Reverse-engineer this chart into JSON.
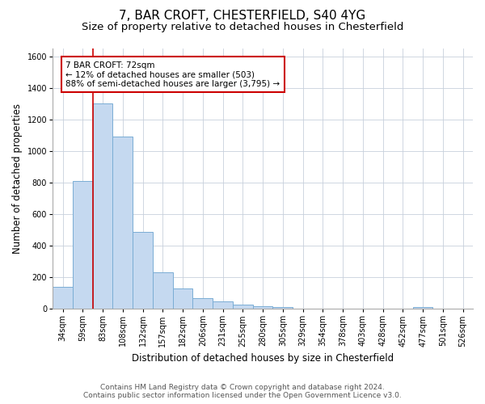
{
  "title": "7, BAR CROFT, CHESTERFIELD, S40 4YG",
  "subtitle": "Size of property relative to detached houses in Chesterfield",
  "xlabel": "Distribution of detached houses by size in Chesterfield",
  "ylabel": "Number of detached properties",
  "bar_color": "#c5d9f0",
  "bar_edge_color": "#7aadd4",
  "categories": [
    "34sqm",
    "59sqm",
    "83sqm",
    "108sqm",
    "132sqm",
    "157sqm",
    "182sqm",
    "206sqm",
    "231sqm",
    "255sqm",
    "280sqm",
    "305sqm",
    "329sqm",
    "354sqm",
    "378sqm",
    "403sqm",
    "428sqm",
    "452sqm",
    "477sqm",
    "501sqm",
    "526sqm"
  ],
  "values": [
    140,
    810,
    1300,
    1090,
    490,
    230,
    130,
    70,
    45,
    25,
    15,
    10,
    0,
    0,
    0,
    0,
    0,
    0,
    10,
    0,
    0
  ],
  "ylim": [
    0,
    1650
  ],
  "yticks": [
    0,
    200,
    400,
    600,
    800,
    1000,
    1200,
    1400,
    1600
  ],
  "vline_x_index": 2,
  "vline_color": "#cc0000",
  "annotation_text": "7 BAR CROFT: 72sqm\n← 12% of detached houses are smaller (503)\n88% of semi-detached houses are larger (3,795) →",
  "annotation_box_color": "#ffffff",
  "annotation_box_edge": "#cc0000",
  "footer_line1": "Contains HM Land Registry data © Crown copyright and database right 2024.",
  "footer_line2": "Contains public sector information licensed under the Open Government Licence v3.0.",
  "background_color": "#ffffff",
  "grid_color": "#c8d0dc",
  "title_fontsize": 11,
  "subtitle_fontsize": 9.5,
  "axis_label_fontsize": 8.5,
  "tick_fontsize": 7,
  "annotation_fontsize": 7.5,
  "footer_fontsize": 6.5
}
